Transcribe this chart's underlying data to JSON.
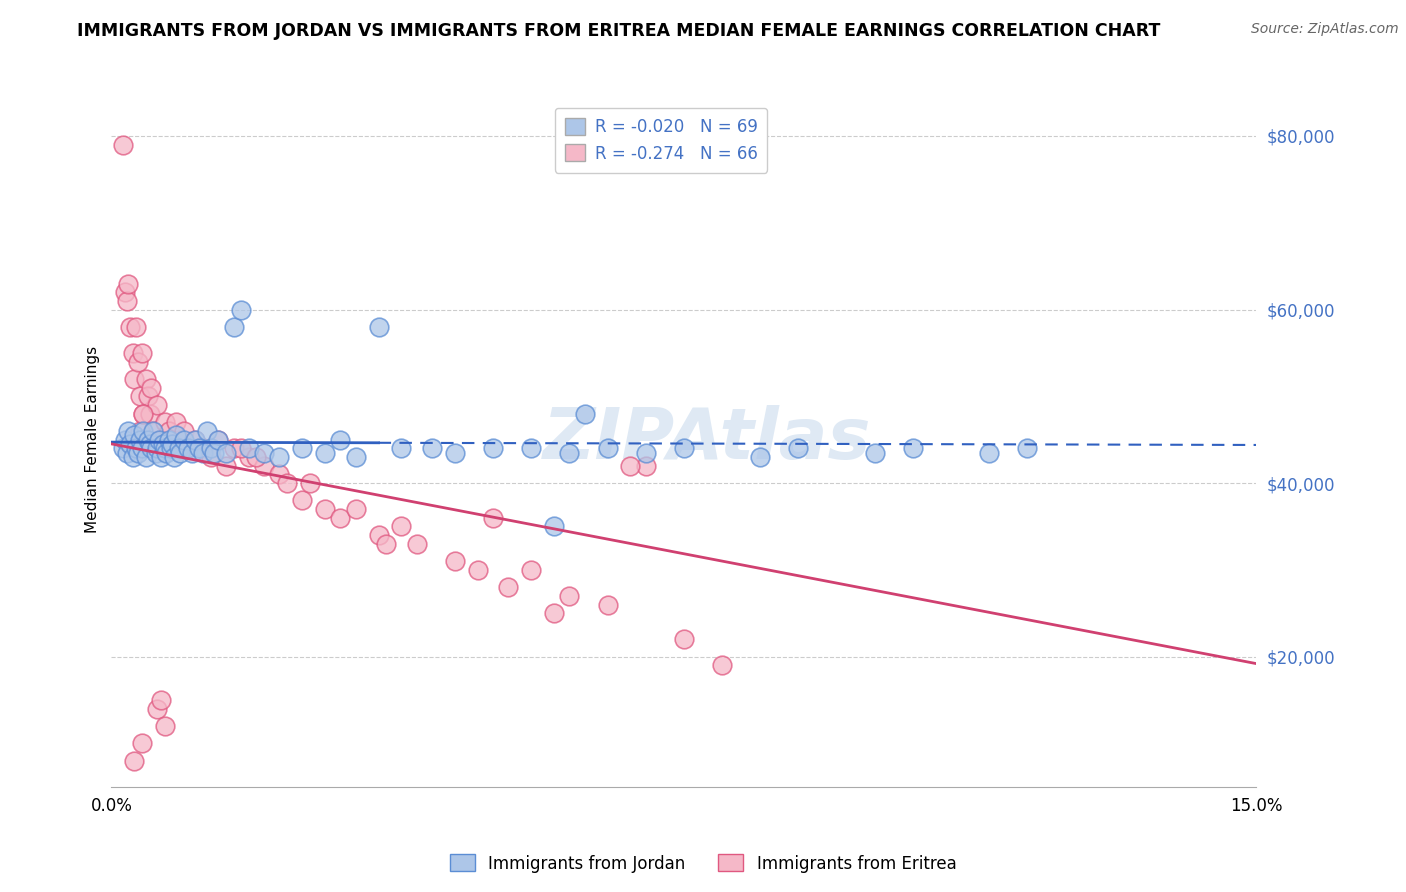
{
  "title": "IMMIGRANTS FROM JORDAN VS IMMIGRANTS FROM ERITREA MEDIAN FEMALE EARNINGS CORRELATION CHART",
  "source": "Source: ZipAtlas.com",
  "ylabel": "Median Female Earnings",
  "y_ticks": [
    20000,
    40000,
    60000,
    80000
  ],
  "y_tick_labels": [
    "$20,000",
    "$40,000",
    "$60,000",
    "$80,000"
  ],
  "x_min": 0.0,
  "x_max": 15.0,
  "y_min": 5000,
  "y_max": 85000,
  "jordan_R": -0.02,
  "jordan_N": 69,
  "eritrea_R": -0.274,
  "eritrea_N": 66,
  "jordan_color": "#adc6e8",
  "eritrea_color": "#f5b8c8",
  "jordan_edge_color": "#5b8dd4",
  "eritrea_edge_color": "#e05880",
  "jordan_line_color": "#3060c0",
  "eritrea_line_color": "#d04070",
  "legend_label_jordan": "Immigrants from Jordan",
  "legend_label_eritrea": "Immigrants from Eritrea",
  "watermark": "ZIPAtlas",
  "jordan_x": [
    0.15,
    0.18,
    0.2,
    0.22,
    0.25,
    0.28,
    0.3,
    0.32,
    0.35,
    0.38,
    0.4,
    0.42,
    0.45,
    0.48,
    0.5,
    0.52,
    0.55,
    0.58,
    0.6,
    0.62,
    0.65,
    0.68,
    0.7,
    0.72,
    0.75,
    0.78,
    0.8,
    0.82,
    0.85,
    0.88,
    0.9,
    0.95,
    1.0,
    1.05,
    1.1,
    1.15,
    1.2,
    1.25,
    1.3,
    1.35,
    1.4,
    1.5,
    1.6,
    1.7,
    1.8,
    2.0,
    2.2,
    2.5,
    2.8,
    3.0,
    3.2,
    3.5,
    3.8,
    4.2,
    4.5,
    5.0,
    5.5,
    6.0,
    6.5,
    7.0,
    7.5,
    8.5,
    9.0,
    10.0,
    10.5,
    11.5,
    12.0,
    6.2,
    5.8
  ],
  "jordan_y": [
    44000,
    45000,
    43500,
    46000,
    44500,
    43000,
    45500,
    44000,
    43500,
    45000,
    44000,
    46000,
    43000,
    45000,
    44500,
    44000,
    46000,
    43500,
    44000,
    45000,
    43000,
    44500,
    44000,
    43500,
    45000,
    44000,
    44500,
    43000,
    45500,
    44000,
    43500,
    45000,
    44000,
    43500,
    45000,
    44000,
    43500,
    46000,
    44000,
    43500,
    45000,
    43500,
    58000,
    60000,
    44000,
    43500,
    43000,
    44000,
    43500,
    45000,
    43000,
    58000,
    44000,
    44000,
    43500,
    44000,
    44000,
    43500,
    44000,
    43500,
    44000,
    43000,
    44000,
    43500,
    44000,
    43500,
    44000,
    48000,
    35000
  ],
  "eritrea_x": [
    0.15,
    0.18,
    0.2,
    0.22,
    0.25,
    0.28,
    0.3,
    0.32,
    0.35,
    0.38,
    0.4,
    0.42,
    0.45,
    0.48,
    0.5,
    0.52,
    0.55,
    0.6,
    0.65,
    0.7,
    0.75,
    0.8,
    0.85,
    0.9,
    0.95,
    1.0,
    1.1,
    1.2,
    1.3,
    1.4,
    1.5,
    1.6,
    1.8,
    2.0,
    2.2,
    2.5,
    2.8,
    3.0,
    3.5,
    4.0,
    4.5,
    5.0,
    5.5,
    6.0,
    6.5,
    7.0,
    7.5,
    8.0,
    3.2,
    2.6,
    1.7,
    0.6,
    0.65,
    0.7,
    0.4,
    0.38,
    0.42,
    5.2,
    5.8,
    6.8,
    0.3,
    1.9,
    2.3,
    4.8,
    3.8,
    3.6
  ],
  "eritrea_y": [
    79000,
    62000,
    61000,
    63000,
    58000,
    55000,
    52000,
    58000,
    54000,
    50000,
    55000,
    48000,
    52000,
    50000,
    48000,
    51000,
    46000,
    49000,
    45000,
    47000,
    46000,
    44000,
    47000,
    45000,
    46000,
    44000,
    45000,
    44000,
    43000,
    45000,
    42000,
    44000,
    43000,
    42000,
    41000,
    38000,
    37000,
    36000,
    34000,
    33000,
    31000,
    36000,
    30000,
    27000,
    26000,
    42000,
    22000,
    19000,
    37000,
    40000,
    44000,
    14000,
    15000,
    12000,
    10000,
    46000,
    48000,
    28000,
    25000,
    42000,
    8000,
    43000,
    40000,
    30000,
    35000,
    33000
  ]
}
